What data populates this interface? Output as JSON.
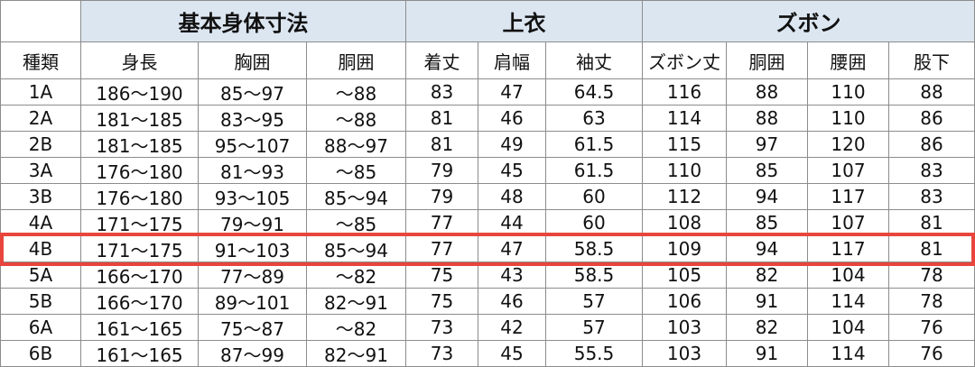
{
  "header": {
    "groups": [
      "基本身体寸法",
      "上衣",
      "ズボン"
    ],
    "columns": [
      "種類",
      "身長",
      "胸囲",
      "胴囲",
      "着丈",
      "肩幅",
      "袖丈",
      "ズボン丈",
      "胴囲",
      "腰囲",
      "股下"
    ]
  },
  "table": {
    "rows": [
      [
        "1A",
        "186～190",
        "85～97",
        "～88",
        83,
        47,
        64.5,
        116,
        88,
        110,
        88
      ],
      [
        "2A",
        "181～185",
        "83～95",
        "～88",
        81,
        46,
        63,
        114,
        88,
        110,
        86
      ],
      [
        "2B",
        "181～185",
        "95～107",
        "88～97",
        81,
        49,
        61.5,
        115,
        97,
        120,
        86
      ],
      [
        "3A",
        "176～180",
        "81～93",
        "～85",
        79,
        45,
        61.5,
        110,
        85,
        107,
        83
      ],
      [
        "3B",
        "176～180",
        "93～105",
        "85～94",
        79,
        48,
        60,
        112,
        94,
        117,
        83
      ],
      [
        "4A",
        "171～175",
        "79～91",
        "～85",
        77,
        44,
        60,
        108,
        85,
        107,
        81
      ],
      [
        "4B",
        "171～175",
        "91～103",
        "85～94",
        77,
        47,
        58.5,
        109,
        94,
        117,
        81
      ],
      [
        "5A",
        "166～170",
        "77～89",
        "～82",
        75,
        43,
        58.5,
        105,
        82,
        104,
        78
      ],
      [
        "5B",
        "166～170",
        "89～101",
        "82～91",
        75,
        46,
        57,
        106,
        91,
        114,
        78
      ],
      [
        "6A",
        "161～165",
        "75～87",
        "～82",
        73,
        42,
        57,
        103,
        82,
        104,
        76
      ],
      [
        "6B",
        "161～165",
        "87～99",
        "82～91",
        73,
        45,
        55.5,
        103,
        91,
        114,
        76
      ]
    ]
  }
}
